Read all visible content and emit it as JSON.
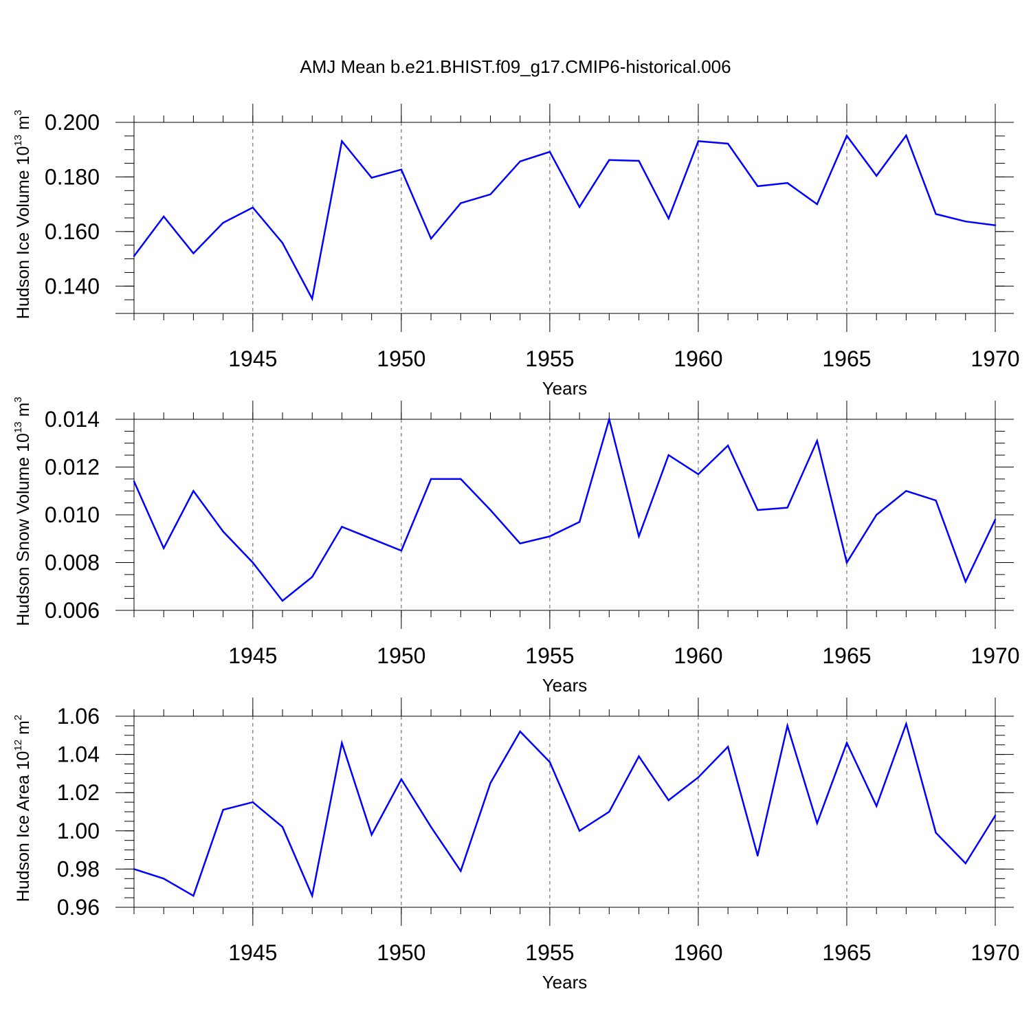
{
  "title": "AMJ Mean b.e21.BHIST.f09_g17.CMIP6-historical.006",
  "chart_data": [
    {
      "type": "line",
      "title": "AMJ Mean b.e21.BHIST.f09_g17.CMIP6-historical.006",
      "xlabel": "Years",
      "ylabel": "Hudson Ice Volume 10",
      "ylabel_exp": "13",
      "ylabel_unit": " m",
      "ylabel_unit_exp": "3",
      "xlim": [
        1941,
        1970
      ],
      "ylim": [
        0.13,
        0.2
      ],
      "xticks": [
        1945,
        1950,
        1955,
        1960,
        1965,
        1970
      ],
      "yticks": [
        0.14,
        0.16,
        0.18,
        0.2
      ],
      "ytick_labels": [
        "0.140",
        "0.160",
        "0.180",
        "0.200"
      ],
      "ytick_minor": 0.005,
      "line_color": "#0000ff",
      "x": [
        1941,
        1942,
        1943,
        1944,
        1945,
        1946,
        1947,
        1948,
        1949,
        1950,
        1951,
        1952,
        1953,
        1954,
        1955,
        1956,
        1957,
        1958,
        1959,
        1960,
        1961,
        1962,
        1963,
        1964,
        1965,
        1966,
        1967,
        1968,
        1969,
        1970
      ],
      "values": [
        0.151,
        0.1655,
        0.152,
        0.1632,
        0.1688,
        0.1558,
        0.1354,
        0.1931,
        0.1797,
        0.1827,
        0.1574,
        0.1704,
        0.1736,
        0.1857,
        0.1892,
        0.169,
        0.1862,
        0.1859,
        0.1648,
        0.1931,
        0.1922,
        0.1766,
        0.1778,
        0.17,
        0.1951,
        0.1804,
        0.1952,
        0.1664,
        0.1637,
        0.1623
      ]
    },
    {
      "type": "line",
      "title": "",
      "xlabel": "Years",
      "ylabel": "Hudson Snow Volume 10",
      "ylabel_exp": "13",
      "ylabel_unit": " m",
      "ylabel_unit_exp": "3",
      "xlim": [
        1941,
        1970
      ],
      "ylim": [
        0.006,
        0.014
      ],
      "xticks": [
        1945,
        1950,
        1955,
        1960,
        1965,
        1970
      ],
      "yticks": [
        0.006,
        0.008,
        0.01,
        0.012,
        0.014
      ],
      "ytick_labels": [
        "0.006",
        "0.008",
        "0.010",
        "0.012",
        "0.014"
      ],
      "ytick_minor": 0.0005,
      "line_color": "#0000ff",
      "x": [
        1941,
        1942,
        1943,
        1944,
        1945,
        1946,
        1947,
        1948,
        1949,
        1950,
        1951,
        1952,
        1953,
        1954,
        1955,
        1956,
        1957,
        1958,
        1959,
        1960,
        1961,
        1962,
        1963,
        1964,
        1965,
        1966,
        1967,
        1968,
        1969,
        1970
      ],
      "values": [
        0.0114,
        0.0086,
        0.011,
        0.0093,
        0.008,
        0.0064,
        0.0074,
        0.0095,
        0.009,
        0.0085,
        0.0115,
        0.0115,
        0.0102,
        0.0088,
        0.0091,
        0.0097,
        0.014,
        0.0091,
        0.0125,
        0.0117,
        0.0129,
        0.0102,
        0.0103,
        0.0131,
        0.008,
        0.01,
        0.011,
        0.0106,
        0.0072,
        0.0098
      ]
    },
    {
      "type": "line",
      "title": "",
      "xlabel": "Years",
      "ylabel": "Hudson Ice Area 10",
      "ylabel_exp": "12",
      "ylabel_unit": " m",
      "ylabel_unit_exp": "2",
      "xlim": [
        1941,
        1970
      ],
      "ylim": [
        0.96,
        1.06
      ],
      "xticks": [
        1945,
        1950,
        1955,
        1960,
        1965,
        1970
      ],
      "yticks": [
        0.96,
        0.98,
        1.0,
        1.02,
        1.04,
        1.06
      ],
      "ytick_labels": [
        "0.96",
        "0.98",
        "1.00",
        "1.02",
        "1.04",
        "1.06"
      ],
      "ytick_minor": 0.005,
      "line_color": "#0000ff",
      "x": [
        1941,
        1942,
        1943,
        1944,
        1945,
        1946,
        1947,
        1948,
        1949,
        1950,
        1951,
        1952,
        1953,
        1954,
        1955,
        1956,
        1957,
        1958,
        1959,
        1960,
        1961,
        1962,
        1963,
        1964,
        1965,
        1966,
        1967,
        1968,
        1969,
        1970
      ],
      "values": [
        0.98,
        0.975,
        0.966,
        1.011,
        1.015,
        1.002,
        0.966,
        1.046,
        0.998,
        1.027,
        1.002,
        0.979,
        1.025,
        1.052,
        1.036,
        1.0,
        1.01,
        1.039,
        1.016,
        1.028,
        1.044,
        0.987,
        1.055,
        1.004,
        1.046,
        1.013,
        1.056,
        0.999,
        0.983,
        1.008
      ]
    }
  ]
}
